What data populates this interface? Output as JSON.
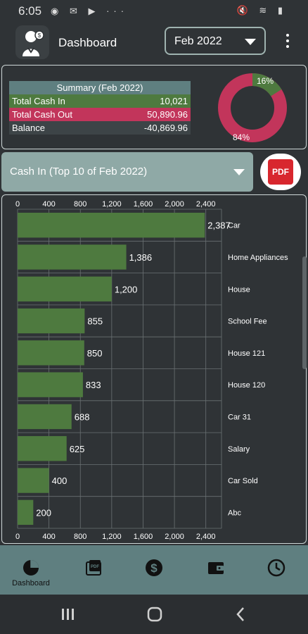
{
  "status_bar": {
    "time": "6:05",
    "left_icons": "◉ ✉ ▶ ···",
    "right_icons": "🔇 ≋ ▮"
  },
  "app_bar": {
    "title": "Dashboard",
    "month": "Feb 2022"
  },
  "summary": {
    "title": "Summary (Feb 2022)",
    "rows": [
      {
        "label": "Total Cash In",
        "value": "10,021"
      },
      {
        "label": "Total Cash Out",
        "value": "50,890.96"
      },
      {
        "label": "Balance",
        "value": "-40,869.96"
      }
    ],
    "donut": {
      "in_percent": 16,
      "out_percent": 84,
      "in_label": "16%",
      "out_label": "84%",
      "in_color": "#4e7a3f",
      "out_color": "#c2355b"
    }
  },
  "cash_in_select": {
    "label": "Cash In (Top 10 of Feb 2022)",
    "pdf_label": "PDF"
  },
  "chart_data": {
    "type": "bar",
    "orientation": "horizontal",
    "categories": [
      "Car",
      "Home Appliances",
      "House",
      "School Fee",
      "House 121",
      "House 120",
      "Car 31",
      "Salary",
      "Car Sold",
      "Abc"
    ],
    "values": [
      2387,
      1386,
      1200,
      855,
      850,
      833,
      688,
      625,
      400,
      200
    ],
    "value_labels": [
      "2,387",
      "1,386",
      "1,200",
      "855",
      "850",
      "833",
      "688",
      "625",
      "400",
      "200"
    ],
    "xlim": [
      0,
      2600
    ],
    "x_ticks": [
      "0",
      "400",
      "800",
      "1,200",
      "1,600",
      "2,000",
      "2,400"
    ],
    "x_tick_values": [
      0,
      400,
      800,
      1200,
      1600,
      2000,
      2400
    ],
    "bar_color": "#4e7a3f",
    "grid": true,
    "title": "",
    "xlabel": "",
    "ylabel": ""
  },
  "bottom_nav": {
    "items": [
      {
        "label": "Dashboard",
        "icon": "pie-chart-icon",
        "active": true
      },
      {
        "label": "",
        "icon": "pdf-icon",
        "active": false
      },
      {
        "label": "",
        "icon": "dollar-icon",
        "active": false
      },
      {
        "label": "",
        "icon": "wallet-icon",
        "active": false
      },
      {
        "label": "",
        "icon": "clock-icon",
        "active": false
      }
    ]
  },
  "system_nav": {
    "items": [
      "recents-icon",
      "home-icon",
      "back-icon"
    ]
  }
}
